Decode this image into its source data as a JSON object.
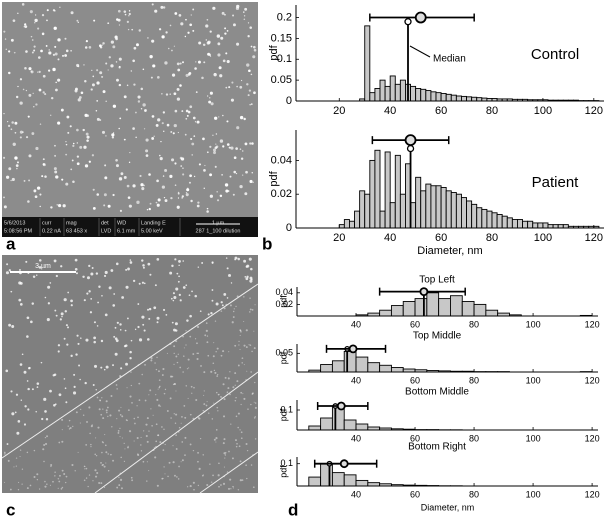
{
  "panel_labels": [
    "a",
    "b",
    "c",
    "d"
  ],
  "sem_a": {
    "info": [
      [
        "5/6/2013",
        "5:08:56 PM"
      ],
      [
        "curr",
        "0.22 nA"
      ],
      [
        "mag",
        "63 453 x"
      ],
      [
        "det",
        "LVD"
      ],
      [
        "WD",
        "6.1 mm"
      ],
      [
        "Landing E",
        "5.00 keV"
      ],
      [
        "1 µm",
        "287 1_100 dilution"
      ]
    ]
  },
  "sem_c": {
    "scale_label": "3 µm"
  },
  "chart_data": [
    {
      "type": "histogram",
      "title": "Control",
      "ylabel": "pdf",
      "annotation": "Median",
      "color": "#c8c8c8",
      "bins": [
        10,
        12,
        14,
        16,
        18,
        20,
        22,
        24,
        26,
        28,
        30,
        32,
        34,
        36,
        38,
        40,
        42,
        44,
        46,
        48,
        50,
        52,
        54,
        56,
        58,
        60,
        62,
        64,
        66,
        68,
        70,
        72,
        74,
        76,
        78,
        80,
        82,
        84,
        86,
        88,
        90,
        92,
        94,
        96,
        98,
        100,
        102,
        104,
        106,
        108,
        110,
        112,
        114,
        116,
        118,
        120,
        122
      ],
      "values": [
        0,
        0,
        0,
        0,
        0,
        0,
        0,
        0,
        0,
        0.005,
        0.18,
        0.02,
        0.03,
        0.05,
        0.035,
        0.06,
        0.04,
        0.05,
        0.04,
        0.035,
        0.03,
        0.028,
        0.025,
        0.022,
        0.02,
        0.018,
        0.016,
        0.014,
        0.012,
        0.011,
        0.01,
        0.009,
        0.008,
        0.007,
        0.006,
        0.006,
        0.005,
        0.005,
        0.005,
        0.004,
        0.004,
        0.004,
        0.003,
        0.003,
        0.003,
        0.003,
        0.002,
        0.002,
        0.002,
        0.002,
        0.002,
        0.002,
        0.001,
        0.001,
        0.001,
        0.001
      ],
      "summary": {
        "mean": 52,
        "low": 32,
        "high": 73,
        "y": 0.2,
        "median": 47,
        "median_y": 0.19
      },
      "xlim": [
        3,
        124
      ],
      "xticks": [
        20,
        40,
        60,
        80,
        100,
        120
      ],
      "ylim": [
        0,
        0.23
      ],
      "yticks": [
        0,
        0.05,
        0.1,
        0.15,
        0.2
      ]
    },
    {
      "type": "histogram",
      "title": "Patient",
      "ylabel": "pdf",
      "xlabel": "Diameter, nm",
      "color": "#c8c8c8",
      "bins": [
        10,
        12,
        14,
        16,
        18,
        20,
        22,
        24,
        26,
        28,
        30,
        32,
        34,
        36,
        38,
        40,
        42,
        44,
        46,
        48,
        50,
        52,
        54,
        56,
        58,
        60,
        62,
        64,
        66,
        68,
        70,
        72,
        74,
        76,
        78,
        80,
        82,
        84,
        86,
        88,
        90,
        92,
        94,
        96,
        98,
        100,
        102,
        104,
        106,
        108,
        110,
        112,
        114,
        116,
        118,
        120,
        122
      ],
      "values": [
        0,
        0,
        0,
        0,
        0,
        0.002,
        0.005,
        0.004,
        0.01,
        0.022,
        0.02,
        0.04,
        0.046,
        0.01,
        0.045,
        0.015,
        0.043,
        0.02,
        0.038,
        0.015,
        0.03,
        0.022,
        0.026,
        0.025,
        0.025,
        0.024,
        0.022,
        0.021,
        0.02,
        0.018,
        0.016,
        0.014,
        0.012,
        0.011,
        0.01,
        0.009,
        0.008,
        0.007,
        0.006,
        0.005,
        0.005,
        0.004,
        0.004,
        0.003,
        0.003,
        0.003,
        0.002,
        0.002,
        0.002,
        0.002,
        0.001,
        0.001,
        0.001,
        0.001,
        0.001,
        0.001
      ],
      "summary": {
        "mean": 48,
        "low": 33,
        "high": 63,
        "y": 0.052,
        "median": 48,
        "median_y": 0.047
      },
      "xlim": [
        3,
        124
      ],
      "xticks": [
        20,
        40,
        60,
        80,
        100,
        120
      ],
      "ylim": [
        0,
        0.058
      ],
      "yticks": [
        0,
        0.02,
        0.04
      ]
    },
    {
      "type": "histogram",
      "title": "Top Left",
      "ylabel": "pdf",
      "color": "#c8c8c8",
      "bins": [
        24,
        28,
        32,
        36,
        40,
        44,
        48,
        52,
        56,
        60,
        64,
        68,
        72,
        76,
        80,
        84,
        88,
        92,
        96,
        100,
        104,
        108,
        112,
        116,
        120
      ],
      "values": [
        0,
        0,
        0,
        0,
        0.002,
        0.005,
        0.01,
        0.018,
        0.025,
        0.03,
        0.04,
        0.03,
        0.035,
        0.025,
        0.02,
        0.01,
        0.005,
        0.002,
        0,
        0,
        0,
        0,
        0,
        0.001
      ],
      "summary": {
        "mean": 63,
        "low": 48,
        "high": 77,
        "y": 0.042,
        "median": 63,
        "median_y": 0.042
      },
      "xlim": [
        20,
        122
      ],
      "xticks": [
        40,
        60,
        80,
        100,
        120
      ],
      "ylim": [
        0,
        0.05
      ],
      "yticks": [
        0.02,
        0.04
      ]
    },
    {
      "type": "histogram",
      "title": "Top Middle",
      "ylabel": "pdf",
      "color": "#c8c8c8",
      "bins": [
        24,
        28,
        32,
        36,
        40,
        44,
        48,
        52,
        56,
        60,
        64,
        68,
        72,
        76,
        80,
        84,
        88,
        92,
        96,
        100,
        104,
        108,
        112,
        116,
        120
      ],
      "values": [
        0.005,
        0.02,
        0.03,
        0.055,
        0.04,
        0.025,
        0.018,
        0.012,
        0.008,
        0.006,
        0.004,
        0.003,
        0.002,
        0.002,
        0.001,
        0.001,
        0.001,
        0,
        0,
        0,
        0,
        0,
        0,
        0.001
      ],
      "summary": {
        "mean": 39,
        "low": 30,
        "high": 50,
        "y": 0.062,
        "median": 37,
        "median_y": 0.062
      },
      "xlim": [
        20,
        122
      ],
      "xticks": [
        40,
        60,
        80,
        100,
        120
      ],
      "ylim": [
        0,
        0.075
      ],
      "yticks": [
        0.05
      ]
    },
    {
      "type": "histogram",
      "title": "Bottom Middle",
      "ylabel": "pdf",
      "color": "#c8c8c8",
      "bins": [
        24,
        28,
        32,
        36,
        40,
        44,
        48,
        52,
        56,
        60,
        64,
        68,
        72,
        76,
        80,
        84,
        88,
        92,
        96,
        100,
        104,
        108,
        112,
        116,
        120
      ],
      "values": [
        0.02,
        0.06,
        0.12,
        0.05,
        0.03,
        0.015,
        0.01,
        0.006,
        0.004,
        0.002,
        0.002,
        0.001,
        0.001,
        0,
        0,
        0,
        0,
        0,
        0,
        0,
        0,
        0,
        0,
        0
      ],
      "summary": {
        "mean": 35,
        "low": 27,
        "high": 44,
        "y": 0.12,
        "median": 33,
        "median_y": 0.12
      },
      "xlim": [
        20,
        122
      ],
      "xticks": [
        40,
        60,
        80,
        100,
        120
      ],
      "ylim": [
        0,
        0.15
      ],
      "yticks": [
        0.1
      ]
    },
    {
      "type": "histogram",
      "title": "Bottom Right",
      "ylabel": "pdf",
      "xlabel": "Diameter, nm",
      "color": "#c8c8c8",
      "bins": [
        24,
        28,
        32,
        36,
        40,
        44,
        48,
        52,
        56,
        60,
        64,
        68,
        72,
        76,
        80,
        84,
        88,
        92,
        96,
        100,
        104,
        108,
        112,
        116,
        120
      ],
      "values": [
        0.04,
        0.1,
        0.06,
        0.05,
        0.025,
        0.015,
        0.01,
        0.006,
        0.004,
        0.003,
        0.002,
        0.001,
        0.001,
        0,
        0,
        0,
        0,
        0,
        0,
        0,
        0,
        0,
        0,
        0
      ],
      "summary": {
        "mean": 36,
        "low": 26,
        "high": 47,
        "y": 0.1,
        "median": 31,
        "median_y": 0.1
      },
      "xlim": [
        20,
        122
      ],
      "xticks": [
        40,
        60,
        80,
        100,
        120
      ],
      "ylim": [
        0,
        0.13
      ],
      "yticks": [
        0.1
      ]
    }
  ]
}
